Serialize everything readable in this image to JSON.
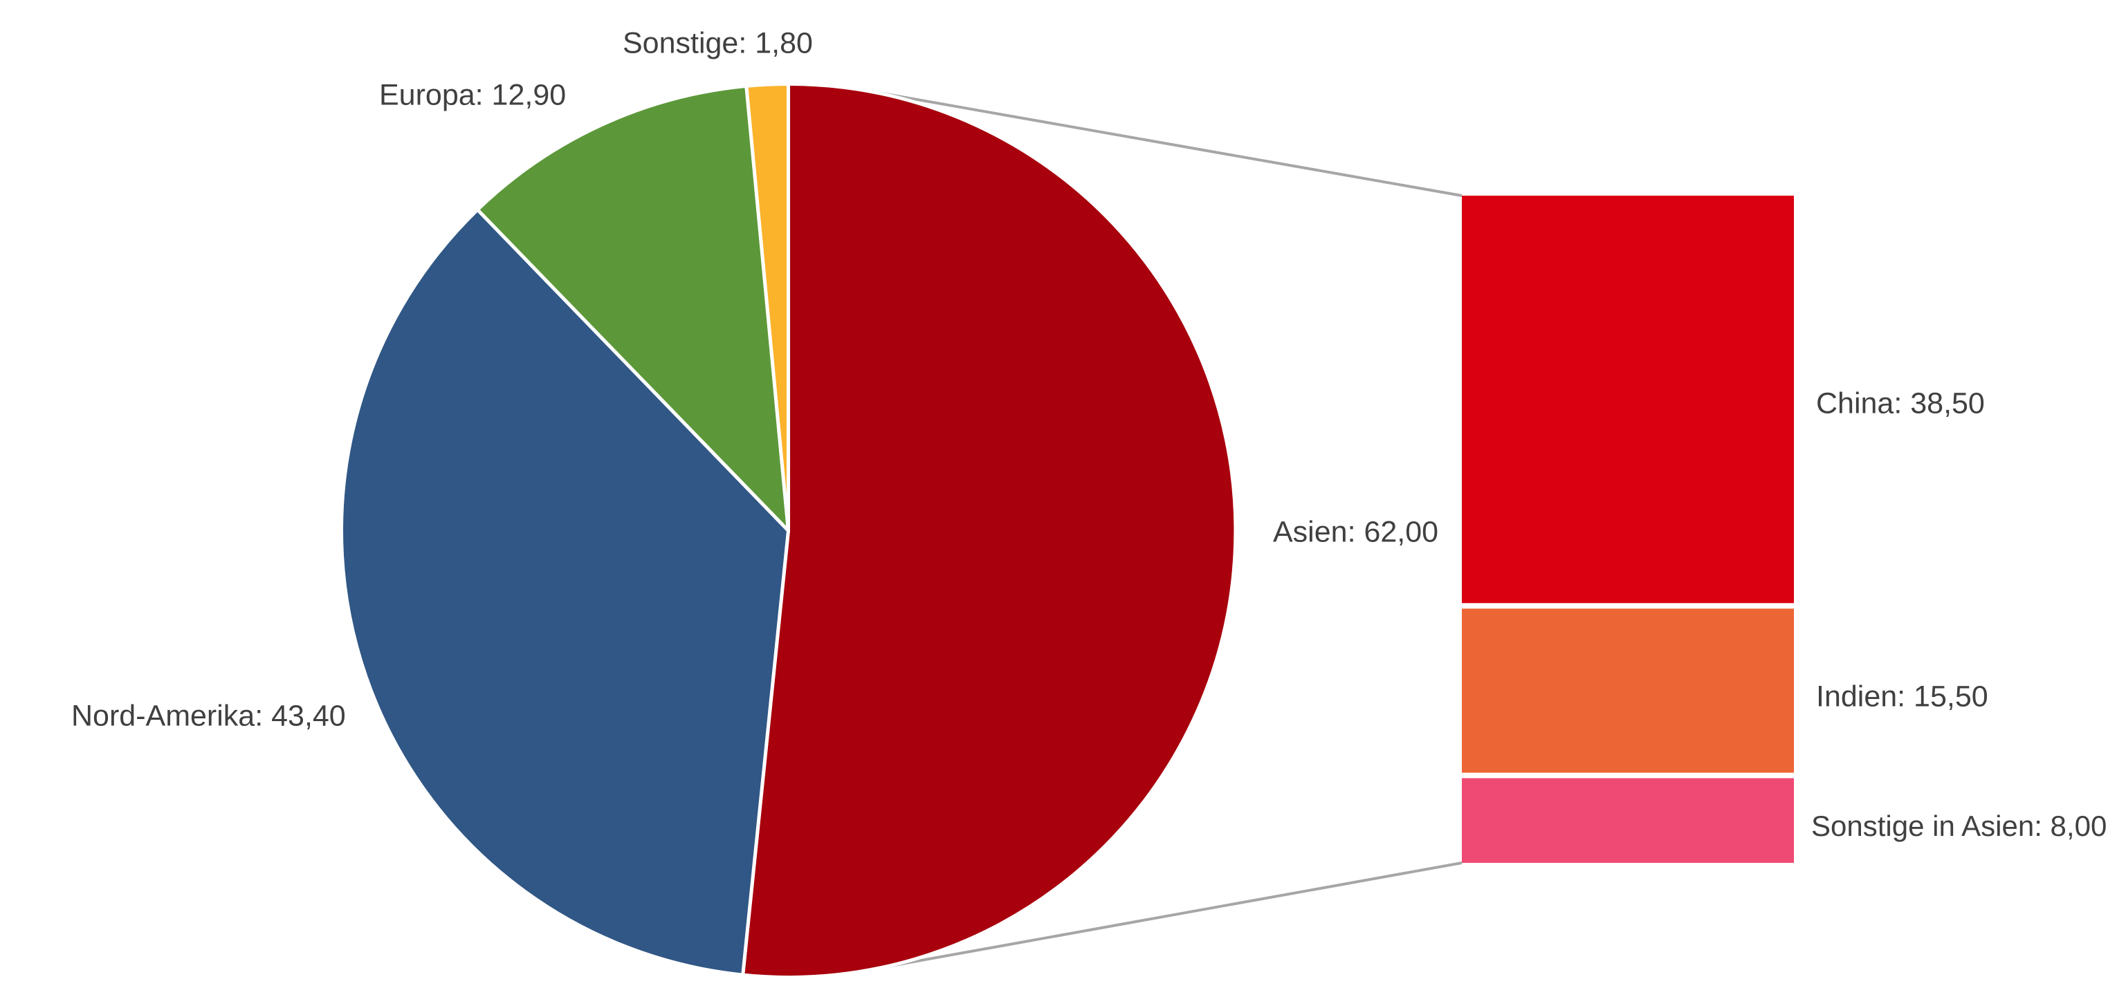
{
  "chart_data": {
    "type": "pie",
    "subtype": "bar-of-pie",
    "title": "",
    "legend": "none",
    "grid": false,
    "number_format": "de (comma decimal)",
    "pie": {
      "categories": [
        "Asien",
        "Nord-Amerika",
        "Europa",
        "Sonstige"
      ],
      "values": [
        62.0,
        43.4,
        12.9,
        1.8
      ],
      "colors": [
        "#A8010D",
        "#305785",
        "#5C9839",
        "#FBB32C"
      ],
      "start_angle_deg": 0,
      "direction": "clockwise"
    },
    "bar": {
      "parent_category": "Asien",
      "parent_value": 62.0,
      "categories": [
        "China",
        "Indien",
        "Sonstige in Asien"
      ],
      "values": [
        38.5,
        15.5,
        8.0
      ],
      "colors": [
        "#DA0011",
        "#EC6534",
        "#EF4A73"
      ]
    },
    "labels": {
      "asien": "Asien: 62,00",
      "nord_amerika": "Nord-Amerika: 43,40",
      "europa": "Europa: 12,90",
      "sonstige": "Sonstige: 1,80",
      "china": "China: 38,50",
      "indien": "Indien: 15,50",
      "sonstige_in_asien": "Sonstige in Asien: 8,00"
    }
  },
  "style": {
    "label_color": "#404040",
    "connector_color": "#A6A6A6",
    "slice_border_color": "#FFFFFF",
    "background": "#FFFFFF"
  }
}
